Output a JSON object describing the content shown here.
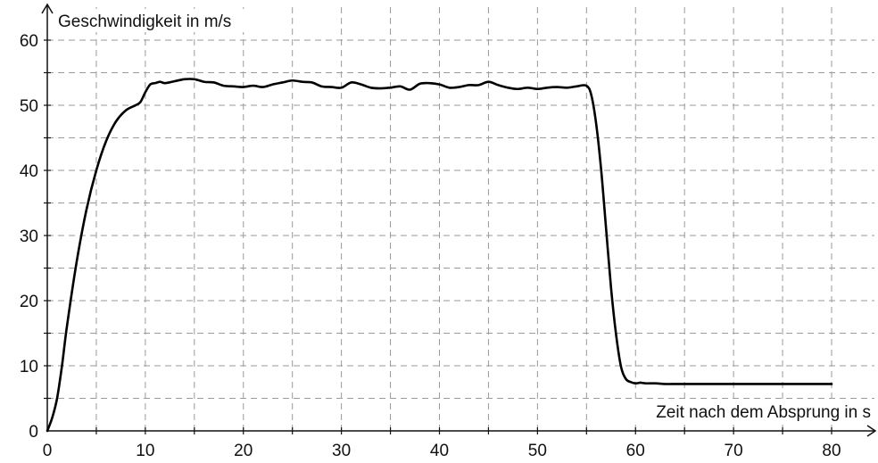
{
  "chart_data": {
    "type": "line",
    "ylabel": "Geschwindigkeit in m/s",
    "xlabel": "Zeit nach dem Absprung in s",
    "xlim": [
      0,
      80
    ],
    "ylim": [
      0,
      60
    ],
    "x_ticks": [
      0,
      10,
      20,
      30,
      40,
      50,
      60,
      70,
      80
    ],
    "y_ticks": [
      0,
      10,
      20,
      30,
      40,
      50,
      60
    ],
    "x_tick_labels": [
      "0",
      "10",
      "20",
      "30",
      "40",
      "50",
      "60",
      "70",
      "80"
    ],
    "y_tick_labels": [
      "0",
      "10",
      "20",
      "30",
      "40",
      "50",
      "60"
    ],
    "grid": true,
    "series": [
      {
        "x": [
          0,
          0.5,
          1,
          1.5,
          2,
          3,
          4,
          5,
          6,
          7,
          8,
          9,
          9.5,
          10,
          10.5,
          11,
          11.5,
          12,
          13,
          14,
          15,
          16,
          17,
          18,
          19,
          20,
          21,
          22,
          23,
          24,
          25,
          26,
          27,
          28,
          29,
          30,
          31,
          32,
          33,
          34,
          35,
          36,
          37,
          38,
          39,
          40,
          41,
          42,
          43,
          44,
          45,
          46,
          47,
          48,
          49,
          50,
          51,
          52,
          53,
          54,
          55,
          55.5,
          56,
          56.5,
          57,
          57.5,
          58,
          58.5,
          59,
          59.5,
          60,
          60.5,
          61,
          62,
          63,
          64,
          65,
          70,
          75,
          80
        ],
        "y": [
          0,
          2,
          5,
          10,
          16,
          26,
          34,
          40,
          44.5,
          47.5,
          49.2,
          50,
          50.5,
          52,
          53.2,
          53.4,
          53.6,
          53.4,
          53.7,
          54.0,
          54.0,
          53.6,
          53.5,
          53.0,
          52.9,
          52.8,
          53.0,
          52.8,
          53.2,
          53.5,
          53.8,
          53.6,
          53.5,
          52.9,
          52.8,
          52.7,
          53.5,
          53.2,
          52.7,
          52.6,
          52.7,
          52.9,
          52.4,
          53.3,
          53.4,
          53.2,
          52.7,
          52.8,
          53.1,
          53.1,
          53.6,
          53.1,
          52.7,
          52.5,
          52.7,
          52.5,
          52.7,
          52.8,
          52.7,
          52.9,
          53.0,
          51.5,
          47,
          40,
          31,
          22,
          15,
          10,
          8,
          7.5,
          7.3,
          7.4,
          7.3,
          7.3,
          7.2,
          7.2,
          7.2,
          7.2,
          7.2,
          7.2
        ],
        "color": "#000000"
      }
    ]
  }
}
